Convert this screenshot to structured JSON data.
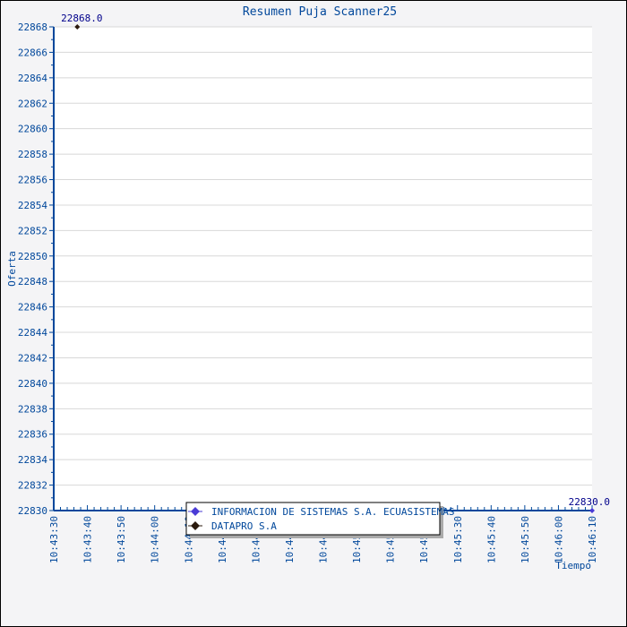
{
  "chart_data": {
    "type": "line",
    "title": "Resumen Puja Scanner25",
    "xlabel": "Tiempo",
    "ylabel": "Oferta",
    "ylim": [
      22830,
      22868
    ],
    "y_ticks": [
      22830,
      22832,
      22834,
      22836,
      22838,
      22840,
      22842,
      22844,
      22846,
      22848,
      22850,
      22852,
      22854,
      22856,
      22858,
      22860,
      22862,
      22864,
      22866,
      22868
    ],
    "x_ticks": [
      "10:43:30",
      "10:43:40",
      "10:43:50",
      "10:44:00",
      "10:44:10",
      "10:44:20",
      "10:44:30",
      "10:44:40",
      "10:44:50",
      "10:45:00",
      "10:45:10",
      "10:45:20",
      "10:45:30",
      "10:45:40",
      "10:45:50",
      "10:46:00",
      "10:46:10"
    ],
    "xlim": [
      "10:43:30",
      "10:46:10"
    ],
    "grid": true,
    "legend_placement": "bottom-center",
    "series": [
      {
        "name": "INFORMACION DE SISTEMAS S.A. ECUASISTEMAS",
        "color": "#4a3bd6",
        "points": [
          {
            "x": "10:46:10",
            "y": 22830.0,
            "label": "22830.0"
          }
        ]
      },
      {
        "name": "DATAPRO S.A",
        "color": "#2b1a0e",
        "points": [
          {
            "x": "10:43:37",
            "y": 22868.0,
            "label": "22868.0"
          }
        ]
      }
    ]
  },
  "colors": {
    "axis": "#00479b",
    "label": "#00008b",
    "grid": "#d8d8d8",
    "background": "#f4f4f6"
  }
}
